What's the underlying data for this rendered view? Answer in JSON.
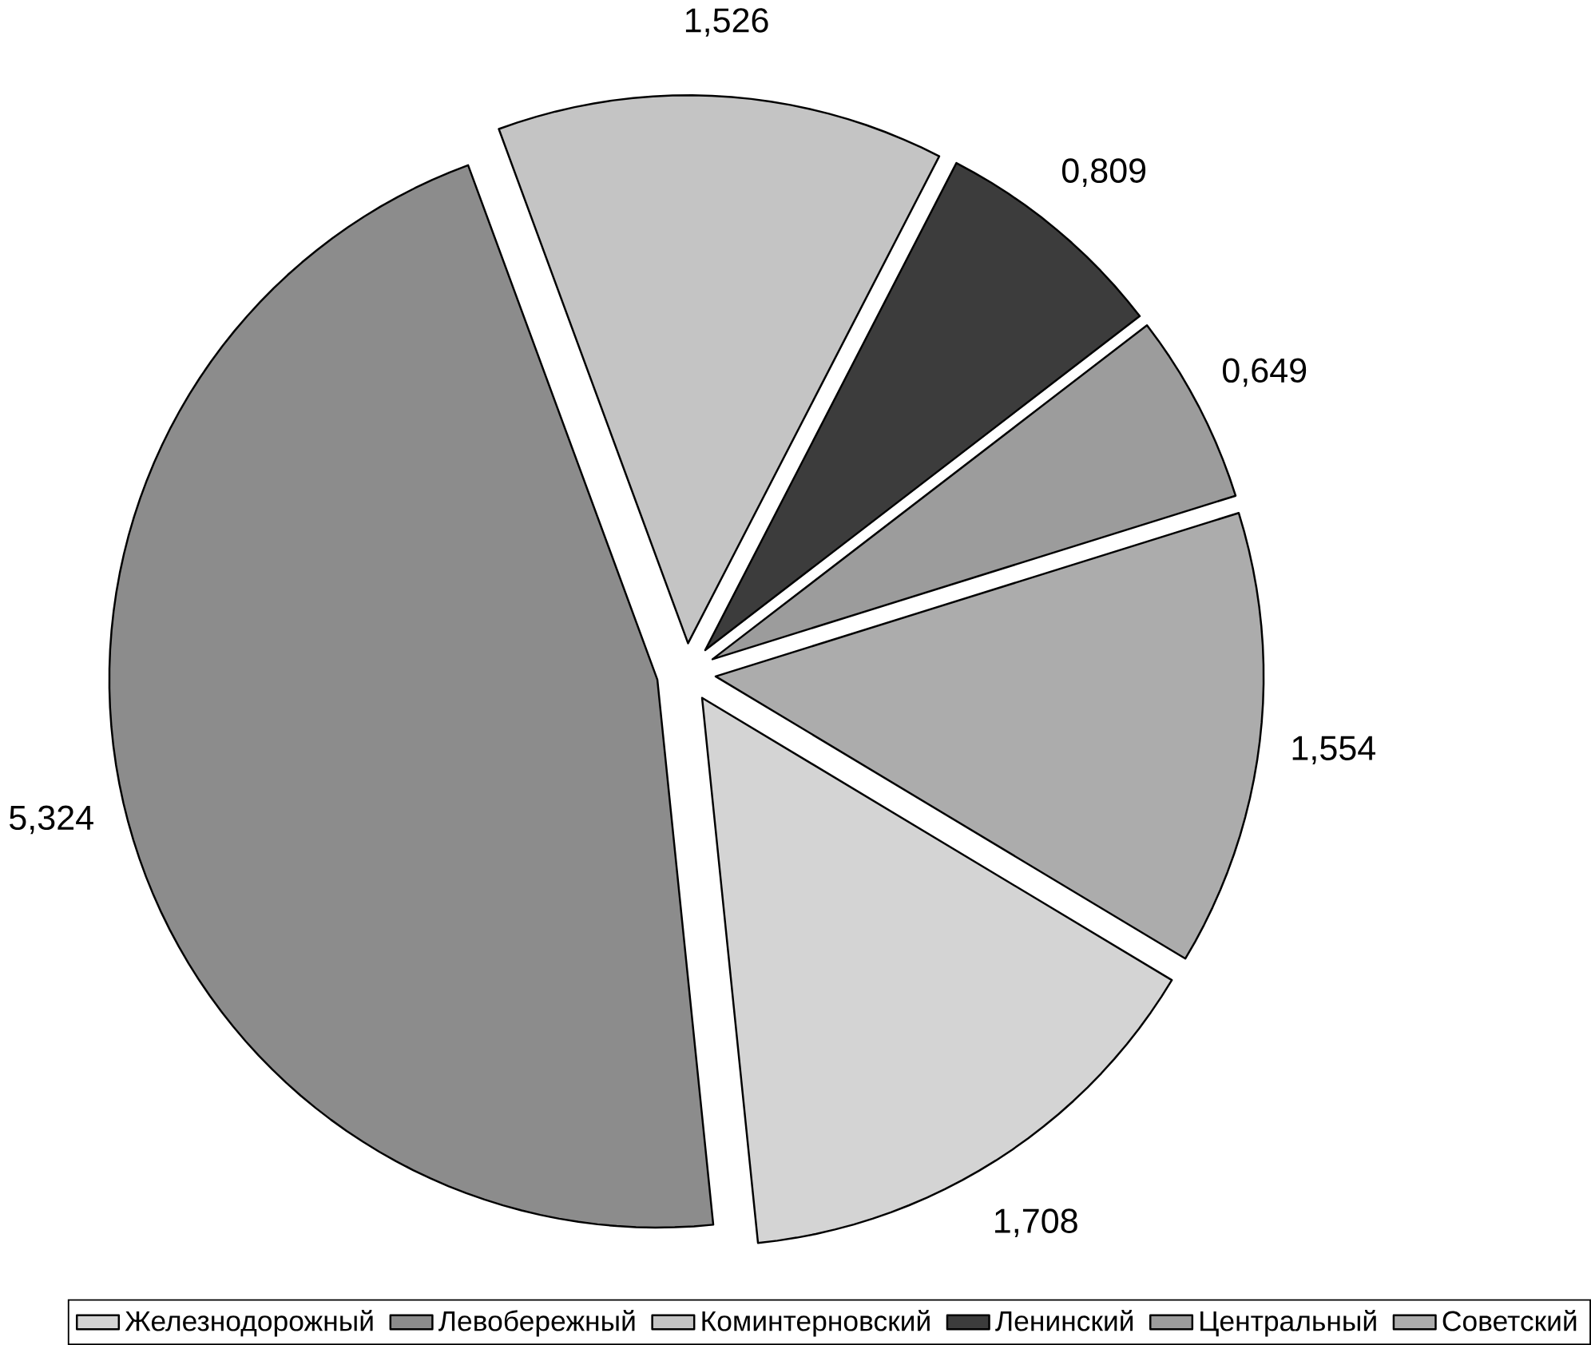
{
  "chart_data": {
    "type": "pie",
    "categories": [
      "Железнодорожный",
      "Левобережный",
      "Коминтерновский",
      "Ленинский",
      "Центральный",
      "Советский"
    ],
    "values": [
      1.708,
      5.324,
      1.526,
      0.809,
      0.649,
      1.554
    ],
    "value_labels": [
      "1,708",
      "5,324",
      "1,526",
      "0,809",
      "0,649",
      "1,554"
    ],
    "colors": [
      "#d4d4d4",
      "#8c8c8c",
      "#c4c4c4",
      "#3c3c3c",
      "#9c9c9c",
      "#acacac"
    ],
    "legend": "bottom"
  }
}
